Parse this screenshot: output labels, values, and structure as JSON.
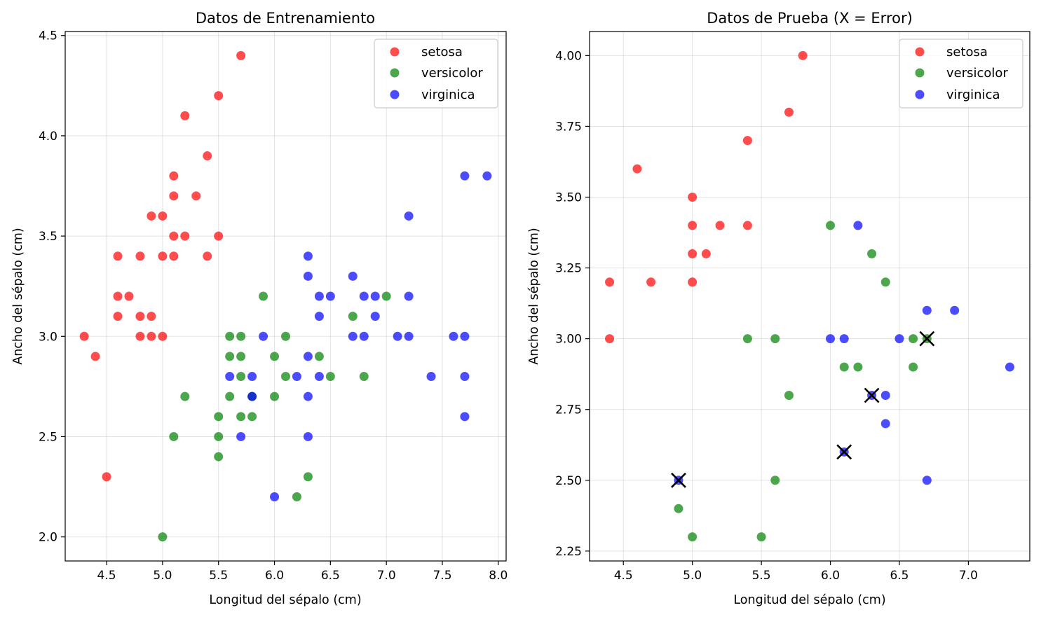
{
  "figure": {
    "panels": [
      {
        "title": "Datos de Entrenamiento",
        "xlabel": "Longitud del sépalo (cm)",
        "ylabel": "Ancho del sépalo (cm)",
        "xlim": [
          4.13,
          8.07
        ],
        "ylim": [
          1.88,
          4.52
        ],
        "xticks": [
          4.5,
          5.0,
          5.5,
          6.0,
          6.5,
          7.0,
          7.5,
          8.0
        ],
        "xtick_labels": [
          "4.5",
          "5.0",
          "5.5",
          "6.0",
          "6.5",
          "7.0",
          "7.5",
          "8.0"
        ],
        "yticks": [
          2.0,
          2.5,
          3.0,
          3.5,
          4.0,
          4.5
        ],
        "ytick_labels": [
          "2.0",
          "2.5",
          "3.0",
          "3.5",
          "4.0",
          "4.5"
        ],
        "legend": [
          "setosa",
          "versicolor",
          "virginica"
        ]
      },
      {
        "title": "Datos de Prueba (X = Error)",
        "xlabel": "Longitud del sépalo (cm)",
        "ylabel": "Ancho del sépalo (cm)",
        "xlim": [
          4.255,
          7.445
        ],
        "ylim": [
          2.215,
          4.085
        ],
        "xticks": [
          4.5,
          5.0,
          5.5,
          6.0,
          6.5,
          7.0
        ],
        "xtick_labels": [
          "4.5",
          "5.0",
          "5.5",
          "6.0",
          "6.5",
          "7.0"
        ],
        "yticks": [
          2.25,
          2.5,
          2.75,
          3.0,
          3.25,
          3.5,
          3.75,
          4.0
        ],
        "ytick_labels": [
          "2.25",
          "2.50",
          "2.75",
          "3.00",
          "3.25",
          "3.50",
          "3.75",
          "4.00"
        ],
        "legend": [
          "setosa",
          "versicolor",
          "virginica"
        ]
      }
    ]
  },
  "colors": {
    "setosa": "#ff0000",
    "versicolor": "#008000",
    "virginica": "#0000ff",
    "error": "#000000"
  },
  "chart_data": [
    {
      "type": "scatter",
      "title": "Datos de Entrenamiento",
      "xlabel": "Longitud del sépalo (cm)",
      "ylabel": "Ancho del sépalo (cm)",
      "xlim": [
        4.13,
        8.07
      ],
      "ylim": [
        1.88,
        4.52
      ],
      "grid": true,
      "legend_position": "top-right",
      "series": [
        {
          "name": "setosa",
          "points": [
            [
              5.7,
              4.4
            ],
            [
              5.5,
              4.2
            ],
            [
              5.2,
              4.1
            ],
            [
              5.4,
              3.9
            ],
            [
              5.1,
              3.8
            ],
            [
              5.1,
              3.7
            ],
            [
              5.3,
              3.7
            ],
            [
              4.9,
              3.6
            ],
            [
              5.0,
              3.6
            ],
            [
              5.1,
              3.5
            ],
            [
              5.2,
              3.5
            ],
            [
              5.5,
              3.5
            ],
            [
              4.6,
              3.4
            ],
            [
              4.8,
              3.4
            ],
            [
              5.0,
              3.4
            ],
            [
              5.1,
              3.4
            ],
            [
              5.4,
              3.4
            ],
            [
              4.6,
              3.2
            ],
            [
              4.7,
              3.2
            ],
            [
              4.6,
              3.1
            ],
            [
              4.8,
              3.1
            ],
            [
              4.9,
              3.1
            ],
            [
              4.3,
              3.0
            ],
            [
              4.8,
              3.0
            ],
            [
              4.9,
              3.0
            ],
            [
              5.0,
              3.0
            ],
            [
              4.4,
              2.9
            ],
            [
              4.5,
              2.3
            ]
          ]
        },
        {
          "name": "versicolor",
          "points": [
            [
              5.9,
              3.2
            ],
            [
              7.0,
              3.2
            ],
            [
              6.7,
              3.1
            ],
            [
              5.6,
              3.0
            ],
            [
              5.7,
              3.0
            ],
            [
              6.1,
              3.0
            ],
            [
              5.6,
              2.9
            ],
            [
              5.7,
              2.9
            ],
            [
              6.0,
              2.9
            ],
            [
              6.4,
              2.9
            ],
            [
              5.7,
              2.8
            ],
            [
              6.1,
              2.8
            ],
            [
              6.5,
              2.8
            ],
            [
              6.8,
              2.8
            ],
            [
              5.2,
              2.7
            ],
            [
              5.6,
              2.7
            ],
            [
              5.8,
              2.7
            ],
            [
              6.0,
              2.7
            ],
            [
              5.5,
              2.6
            ],
            [
              5.7,
              2.6
            ],
            [
              5.8,
              2.6
            ],
            [
              5.1,
              2.5
            ],
            [
              5.5,
              2.5
            ],
            [
              5.5,
              2.4
            ],
            [
              6.3,
              2.3
            ],
            [
              6.2,
              2.2
            ],
            [
              5.0,
              2.0
            ]
          ]
        },
        {
          "name": "virginica",
          "points": [
            [
              7.7,
              3.8
            ],
            [
              7.9,
              3.8
            ],
            [
              7.2,
              3.6
            ],
            [
              6.3,
              3.4
            ],
            [
              6.3,
              3.3
            ],
            [
              6.7,
              3.3
            ],
            [
              6.4,
              3.2
            ],
            [
              6.5,
              3.2
            ],
            [
              6.8,
              3.2
            ],
            [
              6.9,
              3.2
            ],
            [
              7.2,
              3.2
            ],
            [
              6.4,
              3.1
            ],
            [
              6.9,
              3.1
            ],
            [
              5.9,
              3.0
            ],
            [
              6.7,
              3.0
            ],
            [
              6.8,
              3.0
            ],
            [
              7.1,
              3.0
            ],
            [
              7.2,
              3.0
            ],
            [
              7.6,
              3.0
            ],
            [
              7.7,
              3.0
            ],
            [
              6.3,
              2.9
            ],
            [
              5.6,
              2.8
            ],
            [
              5.8,
              2.8
            ],
            [
              6.2,
              2.8
            ],
            [
              6.4,
              2.8
            ],
            [
              7.4,
              2.8
            ],
            [
              7.7,
              2.8
            ],
            [
              5.8,
              2.7
            ],
            [
              6.3,
              2.7
            ],
            [
              7.7,
              2.6
            ],
            [
              5.7,
              2.5
            ],
            [
              6.3,
              2.5
            ],
            [
              6.0,
              2.2
            ]
          ]
        }
      ]
    },
    {
      "type": "scatter",
      "title": "Datos de Prueba (X = Error)",
      "xlabel": "Longitud del sépalo (cm)",
      "ylabel": "Ancho del sépalo (cm)",
      "xlim": [
        4.255,
        7.445
      ],
      "ylim": [
        2.215,
        4.085
      ],
      "grid": true,
      "legend_position": "top-right",
      "series": [
        {
          "name": "setosa",
          "points": [
            [
              5.8,
              4.0
            ],
            [
              5.7,
              3.8
            ],
            [
              5.4,
              3.7
            ],
            [
              4.6,
              3.6
            ],
            [
              5.0,
              3.5
            ],
            [
              5.0,
              3.4
            ],
            [
              5.2,
              3.4
            ],
            [
              5.4,
              3.4
            ],
            [
              5.0,
              3.3
            ],
            [
              5.1,
              3.3
            ],
            [
              4.4,
              3.2
            ],
            [
              4.7,
              3.2
            ],
            [
              5.0,
              3.2
            ],
            [
              4.4,
              3.0
            ]
          ]
        },
        {
          "name": "versicolor",
          "points": [
            [
              6.0,
              3.4
            ],
            [
              6.3,
              3.3
            ],
            [
              6.4,
              3.2
            ],
            [
              5.4,
              3.0
            ],
            [
              5.6,
              3.0
            ],
            [
              6.6,
              3.0
            ],
            [
              6.7,
              3.0
            ],
            [
              6.1,
              2.9
            ],
            [
              6.2,
              2.9
            ],
            [
              6.6,
              2.9
            ],
            [
              5.7,
              2.8
            ],
            [
              5.6,
              2.5
            ],
            [
              4.9,
              2.4
            ],
            [
              5.0,
              2.3
            ],
            [
              5.5,
              2.3
            ]
          ]
        },
        {
          "name": "virginica",
          "points": [
            [
              6.2,
              3.4
            ],
            [
              6.7,
              3.1
            ],
            [
              6.9,
              3.1
            ],
            [
              6.0,
              3.0
            ],
            [
              6.1,
              3.0
            ],
            [
              6.5,
              3.0
            ],
            [
              7.3,
              2.9
            ],
            [
              6.3,
              2.8
            ],
            [
              6.4,
              2.8
            ],
            [
              6.4,
              2.7
            ],
            [
              6.1,
              2.6
            ],
            [
              4.9,
              2.5
            ],
            [
              6.7,
              2.5
            ]
          ]
        }
      ],
      "errors": [
        [
          6.7,
          3.0
        ],
        [
          6.3,
          2.8
        ],
        [
          6.1,
          2.6
        ],
        [
          4.9,
          2.5
        ]
      ]
    }
  ]
}
